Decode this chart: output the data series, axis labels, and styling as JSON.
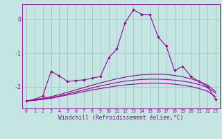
{
  "xlabel": "Windchill (Refroidissement éolien,°C)",
  "bg_color": "#c5e5e2",
  "line_color": "#990099",
  "grid_color": "#99bbbb",
  "xlim": [
    -0.5,
    23.5
  ],
  "ylim": [
    -2.65,
    0.45
  ],
  "yticks": [
    0,
    -1,
    -2
  ],
  "xticks": [
    0,
    1,
    2,
    3,
    4,
    5,
    6,
    7,
    8,
    9,
    10,
    11,
    12,
    13,
    14,
    15,
    16,
    17,
    18,
    19,
    20,
    21,
    22,
    23
  ],
  "smooth1": [
    -2.43,
    -2.41,
    -2.38,
    -2.35,
    -2.3,
    -2.25,
    -2.2,
    -2.15,
    -2.1,
    -2.06,
    -2.02,
    -1.98,
    -1.95,
    -1.93,
    -1.91,
    -1.9,
    -1.9,
    -1.91,
    -1.93,
    -1.96,
    -2.0,
    -2.06,
    -2.14,
    -2.3
  ],
  "smooth2": [
    -2.43,
    -2.4,
    -2.37,
    -2.33,
    -2.28,
    -2.22,
    -2.16,
    -2.1,
    -2.04,
    -1.98,
    -1.93,
    -1.88,
    -1.84,
    -1.81,
    -1.79,
    -1.78,
    -1.78,
    -1.79,
    -1.81,
    -1.84,
    -1.88,
    -1.94,
    -2.02,
    -2.2
  ],
  "smooth3": [
    -2.43,
    -2.39,
    -2.35,
    -2.3,
    -2.24,
    -2.17,
    -2.1,
    -2.03,
    -1.96,
    -1.89,
    -1.83,
    -1.77,
    -1.72,
    -1.68,
    -1.65,
    -1.64,
    -1.63,
    -1.64,
    -1.67,
    -1.71,
    -1.77,
    -1.85,
    -1.95,
    -2.15
  ],
  "jagged": [
    -2.43,
    -2.38,
    -2.28,
    -1.55,
    -1.68,
    -1.85,
    -1.82,
    -1.8,
    -1.75,
    -1.7,
    -1.15,
    -0.88,
    -0.1,
    0.28,
    0.15,
    0.14,
    -0.52,
    -0.8,
    -1.52,
    -1.4,
    -1.7,
    -1.85,
    -2.0,
    -2.38
  ]
}
